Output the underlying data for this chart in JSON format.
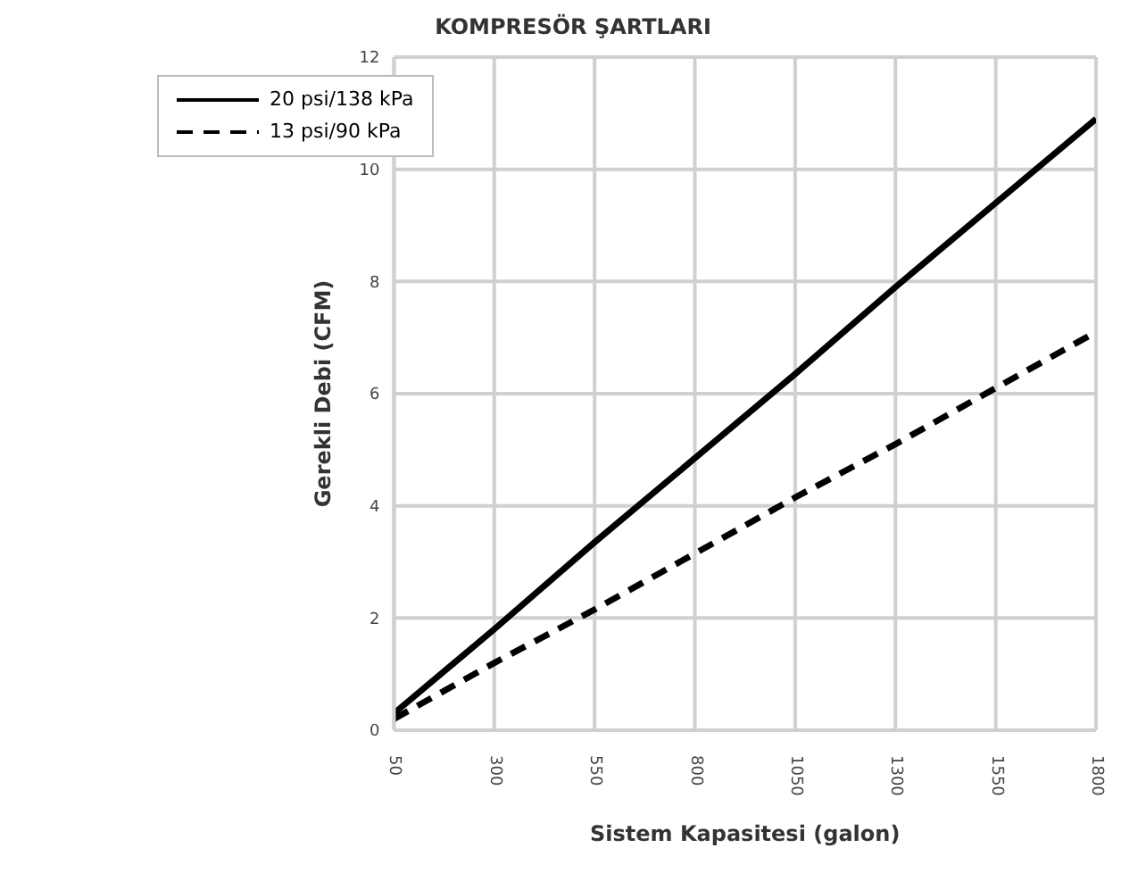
{
  "chart_data": {
    "type": "line",
    "title": "KOMPRESÖR ŞARTLARI",
    "xlabel": "Sistem Kapasitesi (galon)",
    "ylabel": "Gerekli Debi (CFM)",
    "x": [
      50,
      300,
      550,
      800,
      1050,
      1300,
      1550,
      1800
    ],
    "series": [
      {
        "name": "20 psi/138 kPa",
        "color": "#000000",
        "line_style": "solid",
        "values": [
          0.3,
          1.8,
          3.35,
          4.85,
          6.35,
          7.9,
          9.4,
          10.9
        ]
      },
      {
        "name": "13 psi/90 kPa",
        "color": "#000000",
        "line_style": "dashed",
        "values": [
          0.2,
          1.2,
          2.15,
          3.15,
          4.15,
          5.1,
          6.1,
          7.1
        ]
      }
    ],
    "xlim": [
      50,
      1800
    ],
    "xticks": [
      50,
      300,
      550,
      800,
      1050,
      1300,
      1550,
      1800
    ],
    "ylim": [
      0,
      12
    ],
    "yticks": [
      0,
      2,
      4,
      6,
      8,
      10,
      12
    ],
    "grid": true,
    "legend": "top left",
    "marker": "none"
  }
}
